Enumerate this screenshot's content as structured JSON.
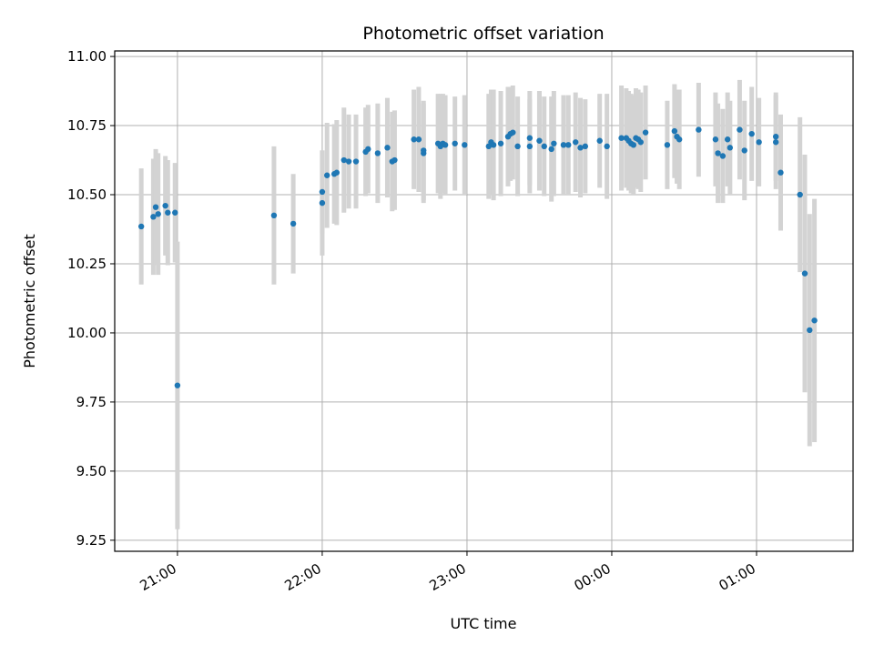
{
  "chart_data": {
    "type": "scatter",
    "title": "Photometric offset variation",
    "xlabel": "UTC time",
    "ylabel": "Photometric offset",
    "x_ticks": [
      "21:00",
      "22:00",
      "23:00",
      "00:00",
      "01:00"
    ],
    "y_ticks": [
      "9.25",
      "9.50",
      "9.75",
      "10.00",
      "10.25",
      "10.50",
      "10.75",
      "11.00"
    ],
    "xlim": [
      "20:34",
      "01:40"
    ],
    "ylim": [
      9.21,
      11.02
    ],
    "grid": true,
    "colors": {
      "point": "#1f77b4",
      "errorbar": "#d3d3d3",
      "grid": "#b0b0b0"
    },
    "points": [
      {
        "x": "20:45",
        "y": 10.385,
        "err": 0.21
      },
      {
        "x": "20:50",
        "y": 10.42,
        "err": 0.21
      },
      {
        "x": "20:51",
        "y": 10.455,
        "err": 0.21
      },
      {
        "x": "20:52",
        "y": 10.43,
        "err": 0.22
      },
      {
        "x": "20:55",
        "y": 10.46,
        "err": 0.18
      },
      {
        "x": "20:56",
        "y": 10.435,
        "err": 0.19
      },
      {
        "x": "20:59",
        "y": 10.435,
        "err": 0.18
      },
      {
        "x": "21:00",
        "y": 9.81,
        "err": 0.52
      },
      {
        "x": "21:40",
        "y": 10.425,
        "err": 0.25
      },
      {
        "x": "21:48",
        "y": 10.395,
        "err": 0.18
      },
      {
        "x": "22:00",
        "y": 10.51,
        "err": 0.15
      },
      {
        "x": "22:00",
        "y": 10.47,
        "err": 0.19
      },
      {
        "x": "22:02",
        "y": 10.57,
        "err": 0.19
      },
      {
        "x": "22:05",
        "y": 10.575,
        "err": 0.18
      },
      {
        "x": "22:06",
        "y": 10.58,
        "err": 0.19
      },
      {
        "x": "22:09",
        "y": 10.625,
        "err": 0.19
      },
      {
        "x": "22:11",
        "y": 10.62,
        "err": 0.17
      },
      {
        "x": "22:14",
        "y": 10.62,
        "err": 0.17
      },
      {
        "x": "22:18",
        "y": 10.655,
        "err": 0.16
      },
      {
        "x": "22:19",
        "y": 10.665,
        "err": 0.16
      },
      {
        "x": "22:23",
        "y": 10.65,
        "err": 0.18
      },
      {
        "x": "22:27",
        "y": 10.67,
        "err": 0.18
      },
      {
        "x": "22:29",
        "y": 10.62,
        "err": 0.18
      },
      {
        "x": "22:30",
        "y": 10.625,
        "err": 0.18
      },
      {
        "x": "22:38",
        "y": 10.7,
        "err": 0.18
      },
      {
        "x": "22:40",
        "y": 10.7,
        "err": 0.19
      },
      {
        "x": "22:42",
        "y": 10.65,
        "err": 0.18
      },
      {
        "x": "22:42",
        "y": 10.66,
        "err": 0.18
      },
      {
        "x": "22:48",
        "y": 10.685,
        "err": 0.18
      },
      {
        "x": "22:49",
        "y": 10.675,
        "err": 0.19
      },
      {
        "x": "22:50",
        "y": 10.685,
        "err": 0.18
      },
      {
        "x": "22:51",
        "y": 10.68,
        "err": 0.18
      },
      {
        "x": "22:55",
        "y": 10.685,
        "err": 0.17
      },
      {
        "x": "22:59",
        "y": 10.68,
        "err": 0.18
      },
      {
        "x": "23:09",
        "y": 10.675,
        "err": 0.19
      },
      {
        "x": "23:10",
        "y": 10.69,
        "err": 0.19
      },
      {
        "x": "23:11",
        "y": 10.68,
        "err": 0.2
      },
      {
        "x": "23:14",
        "y": 10.685,
        "err": 0.19
      },
      {
        "x": "23:17",
        "y": 10.71,
        "err": 0.18
      },
      {
        "x": "23:18",
        "y": 10.72,
        "err": 0.17
      },
      {
        "x": "23:19",
        "y": 10.725,
        "err": 0.17
      },
      {
        "x": "23:21",
        "y": 10.675,
        "err": 0.18
      },
      {
        "x": "23:26",
        "y": 10.675,
        "err": 0.17
      },
      {
        "x": "23:26",
        "y": 10.705,
        "err": 0.17
      },
      {
        "x": "23:30",
        "y": 10.695,
        "err": 0.18
      },
      {
        "x": "23:32",
        "y": 10.675,
        "err": 0.18
      },
      {
        "x": "23:35",
        "y": 10.665,
        "err": 0.19
      },
      {
        "x": "23:36",
        "y": 10.685,
        "err": 0.19
      },
      {
        "x": "23:40",
        "y": 10.68,
        "err": 0.18
      },
      {
        "x": "23:42",
        "y": 10.68,
        "err": 0.18
      },
      {
        "x": "23:45",
        "y": 10.69,
        "err": 0.18
      },
      {
        "x": "23:47",
        "y": 10.67,
        "err": 0.18
      },
      {
        "x": "23:49",
        "y": 10.675,
        "err": 0.17
      },
      {
        "x": "23:55",
        "y": 10.695,
        "err": 0.17
      },
      {
        "x": "23:58",
        "y": 10.675,
        "err": 0.19
      },
      {
        "x": "00:04",
        "y": 10.705,
        "err": 0.19
      },
      {
        "x": "00:06",
        "y": 10.705,
        "err": 0.18
      },
      {
        "x": "00:07",
        "y": 10.695,
        "err": 0.18
      },
      {
        "x": "00:08",
        "y": 10.685,
        "err": 0.18
      },
      {
        "x": "00:09",
        "y": 10.68,
        "err": 0.18
      },
      {
        "x": "00:10",
        "y": 10.705,
        "err": 0.18
      },
      {
        "x": "00:11",
        "y": 10.7,
        "err": 0.18
      },
      {
        "x": "00:12",
        "y": 10.69,
        "err": 0.18
      },
      {
        "x": "00:14",
        "y": 10.725,
        "err": 0.17
      },
      {
        "x": "00:23",
        "y": 10.68,
        "err": 0.16
      },
      {
        "x": "00:26",
        "y": 10.73,
        "err": 0.17
      },
      {
        "x": "00:27",
        "y": 10.71,
        "err": 0.17
      },
      {
        "x": "00:28",
        "y": 10.7,
        "err": 0.18
      },
      {
        "x": "00:36",
        "y": 10.735,
        "err": 0.17
      },
      {
        "x": "00:43",
        "y": 10.7,
        "err": 0.17
      },
      {
        "x": "00:44",
        "y": 10.65,
        "err": 0.18
      },
      {
        "x": "00:46",
        "y": 10.64,
        "err": 0.17
      },
      {
        "x": "00:48",
        "y": 10.7,
        "err": 0.17
      },
      {
        "x": "00:49",
        "y": 10.67,
        "err": 0.17
      },
      {
        "x": "00:53",
        "y": 10.735,
        "err": 0.18
      },
      {
        "x": "00:55",
        "y": 10.66,
        "err": 0.18
      },
      {
        "x": "00:58",
        "y": 10.72,
        "err": 0.17
      },
      {
        "x": "01:01",
        "y": 10.69,
        "err": 0.16
      },
      {
        "x": "01:08",
        "y": 10.71,
        "err": 0.16
      },
      {
        "x": "01:08",
        "y": 10.69,
        "err": 0.17
      },
      {
        "x": "01:10",
        "y": 10.58,
        "err": 0.21
      },
      {
        "x": "01:18",
        "y": 10.5,
        "err": 0.28
      },
      {
        "x": "01:20",
        "y": 10.215,
        "err": 0.43
      },
      {
        "x": "01:22",
        "y": 10.01,
        "err": 0.42
      },
      {
        "x": "01:24",
        "y": 10.045,
        "err": 0.44
      }
    ]
  }
}
